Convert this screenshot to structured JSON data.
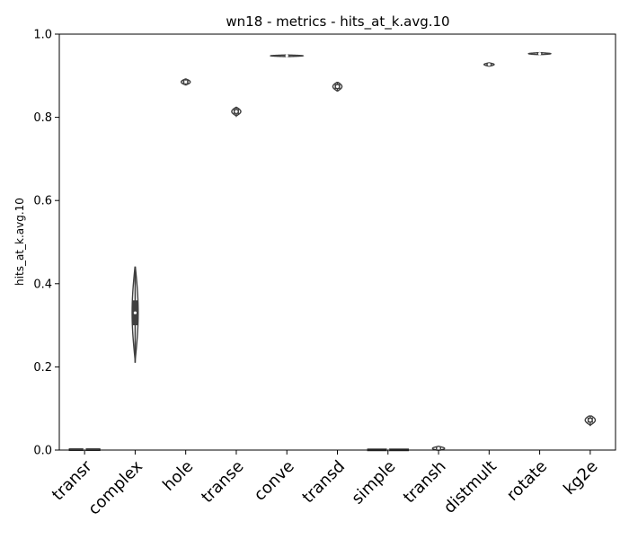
{
  "chart_data": {
    "type": "violin",
    "title": "wn18 - metrics - hits_at_k.avg.10",
    "xlabel": "",
    "ylabel": "hits_at_k.avg.10",
    "ylim": [
      0.0,
      1.0
    ],
    "yticks": [
      "0.0",
      "0.2",
      "0.4",
      "0.6",
      "0.8",
      "1.0"
    ],
    "grid": false,
    "categories": [
      "transr",
      "complex",
      "hole",
      "transe",
      "conve",
      "transd",
      "simple",
      "transh",
      "distmult",
      "rotate",
      "kg2e"
    ],
    "series": [
      {
        "category": "transr",
        "min": 0.0,
        "q1": 0.0005,
        "median": 0.001,
        "q3": 0.0015,
        "max": 0.002,
        "halfwidth": 0.3
      },
      {
        "category": "complex",
        "min": 0.21,
        "q1": 0.3,
        "median": 0.33,
        "q3": 0.36,
        "max": 0.44,
        "halfwidth": 0.06
      },
      {
        "category": "hole",
        "min": 0.877,
        "q1": 0.881,
        "median": 0.885,
        "q3": 0.889,
        "max": 0.892,
        "halfwidth": 0.09
      },
      {
        "category": "transe",
        "min": 0.803,
        "q1": 0.808,
        "median": 0.814,
        "q3": 0.82,
        "max": 0.824,
        "halfwidth": 0.09
      },
      {
        "category": "conve",
        "min": 0.946,
        "q1": 0.947,
        "median": 0.948,
        "q3": 0.949,
        "max": 0.95,
        "halfwidth": 0.32
      },
      {
        "category": "transd",
        "min": 0.862,
        "q1": 0.868,
        "median": 0.874,
        "q3": 0.88,
        "max": 0.884,
        "halfwidth": 0.09
      },
      {
        "category": "simple",
        "min": 0.0,
        "q1": 0.0003,
        "median": 0.0005,
        "q3": 0.0008,
        "max": 0.001,
        "halfwidth": 0.4
      },
      {
        "category": "transh",
        "min": 0.0,
        "q1": 0.002,
        "median": 0.004,
        "q3": 0.007,
        "max": 0.01,
        "halfwidth": 0.12
      },
      {
        "category": "distmult",
        "min": 0.923,
        "q1": 0.925,
        "median": 0.927,
        "q3": 0.929,
        "max": 0.931,
        "halfwidth": 0.1
      },
      {
        "category": "rotate",
        "min": 0.951,
        "q1": 0.952,
        "median": 0.953,
        "q3": 0.954,
        "max": 0.956,
        "halfwidth": 0.22
      },
      {
        "category": "kg2e",
        "min": 0.058,
        "q1": 0.066,
        "median": 0.072,
        "q3": 0.078,
        "max": 0.082,
        "halfwidth": 0.1
      }
    ],
    "colors": {
      "violin_fill": "#ffffff",
      "violin_edge": "#3f3f3f",
      "box": "#3f3f3f",
      "median": "#ffffff",
      "axis": "#000000"
    }
  }
}
